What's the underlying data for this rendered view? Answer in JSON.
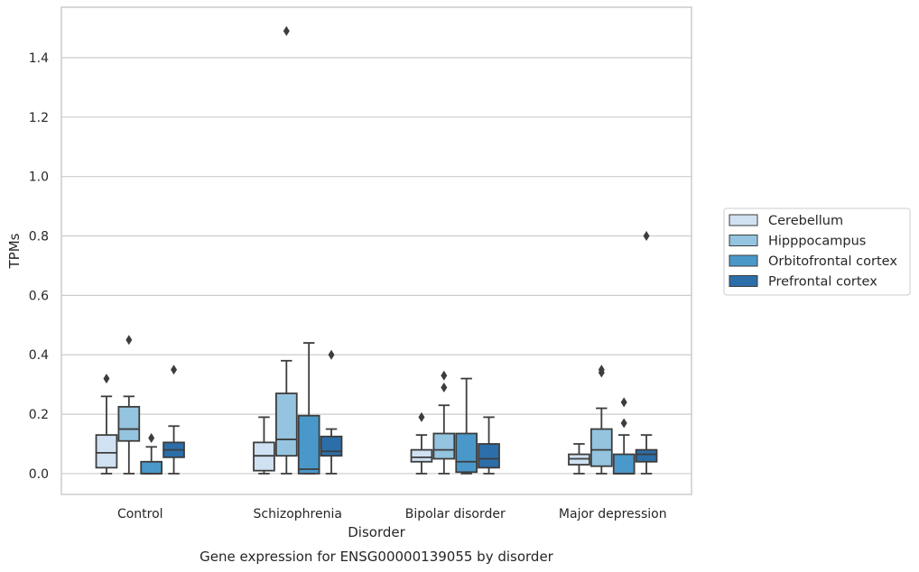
{
  "chart_data": {
    "type": "box",
    "title": "Gene expression for ENSG00000139055 by disorder",
    "xlabel": "Disorder",
    "ylabel": "TPMs",
    "ylim": [
      -0.07,
      1.57
    ],
    "yticks": [
      0.0,
      0.2,
      0.4,
      0.6,
      0.8,
      1.0,
      1.2,
      1.4
    ],
    "ytick_labels": [
      "0.0",
      "0.2",
      "0.4",
      "0.6",
      "0.8",
      "1.0",
      "1.2",
      "1.4"
    ],
    "grid": "horizontal",
    "legend_position": "outside-right",
    "categories": [
      "Control",
      "Schizophrenia",
      "Bipolar disorder",
      "Major depression"
    ],
    "series": [
      {
        "name": "Cerebellum",
        "color": "#d0e1f2",
        "boxes": [
          {
            "whislo": 0.0,
            "q1": 0.02,
            "med": 0.07,
            "q3": 0.13,
            "whishi": 0.26,
            "fliers": [
              0.32
            ]
          },
          {
            "whislo": 0.0,
            "q1": 0.01,
            "med": 0.06,
            "q3": 0.105,
            "whishi": 0.19,
            "fliers": []
          },
          {
            "whislo": 0.0,
            "q1": 0.04,
            "med": 0.055,
            "q3": 0.08,
            "whishi": 0.13,
            "fliers": [
              0.19
            ]
          },
          {
            "whislo": 0.0,
            "q1": 0.03,
            "med": 0.05,
            "q3": 0.065,
            "whishi": 0.1,
            "fliers": []
          }
        ]
      },
      {
        "name": "Hipppocampus",
        "color": "#94c4df",
        "boxes": [
          {
            "whislo": 0.0,
            "q1": 0.11,
            "med": 0.15,
            "q3": 0.225,
            "whishi": 0.26,
            "fliers": [
              0.45
            ]
          },
          {
            "whislo": 0.0,
            "q1": 0.06,
            "med": 0.115,
            "q3": 0.27,
            "whishi": 0.38,
            "fliers": [
              1.49
            ]
          },
          {
            "whislo": 0.0,
            "q1": 0.05,
            "med": 0.08,
            "q3": 0.135,
            "whishi": 0.23,
            "fliers": [
              0.29,
              0.33
            ]
          },
          {
            "whislo": 0.0,
            "q1": 0.025,
            "med": 0.08,
            "q3": 0.15,
            "whishi": 0.22,
            "fliers": [
              0.34,
              0.35
            ]
          }
        ]
      },
      {
        "name": "Orbitofrontal cortex",
        "color": "#4a98c9",
        "boxes": [
          {
            "whislo": 0.0,
            "q1": 0.0,
            "med": 0.0,
            "q3": 0.04,
            "whishi": 0.09,
            "fliers": [
              0.12
            ]
          },
          {
            "whislo": 0.0,
            "q1": 0.0,
            "med": 0.015,
            "q3": 0.195,
            "whishi": 0.44,
            "fliers": []
          },
          {
            "whislo": 0.0,
            "q1": 0.005,
            "med": 0.04,
            "q3": 0.135,
            "whishi": 0.32,
            "fliers": []
          },
          {
            "whislo": 0.0,
            "q1": 0.0,
            "med": 0.0,
            "q3": 0.065,
            "whishi": 0.13,
            "fliers": [
              0.17,
              0.24
            ]
          }
        ]
      },
      {
        "name": "Prefrontal cortex",
        "color": "#2b6ea8",
        "boxes": [
          {
            "whislo": 0.0,
            "q1": 0.055,
            "med": 0.08,
            "q3": 0.105,
            "whishi": 0.16,
            "fliers": [
              0.35
            ]
          },
          {
            "whislo": 0.0,
            "q1": 0.06,
            "med": 0.075,
            "q3": 0.125,
            "whishi": 0.15,
            "fliers": [
              0.4
            ]
          },
          {
            "whislo": 0.0,
            "q1": 0.02,
            "med": 0.05,
            "q3": 0.1,
            "whishi": 0.19,
            "fliers": []
          },
          {
            "whislo": 0.0,
            "q1": 0.04,
            "med": 0.065,
            "q3": 0.08,
            "whishi": 0.13,
            "fliers": [
              0.8
            ]
          }
        ]
      }
    ]
  }
}
